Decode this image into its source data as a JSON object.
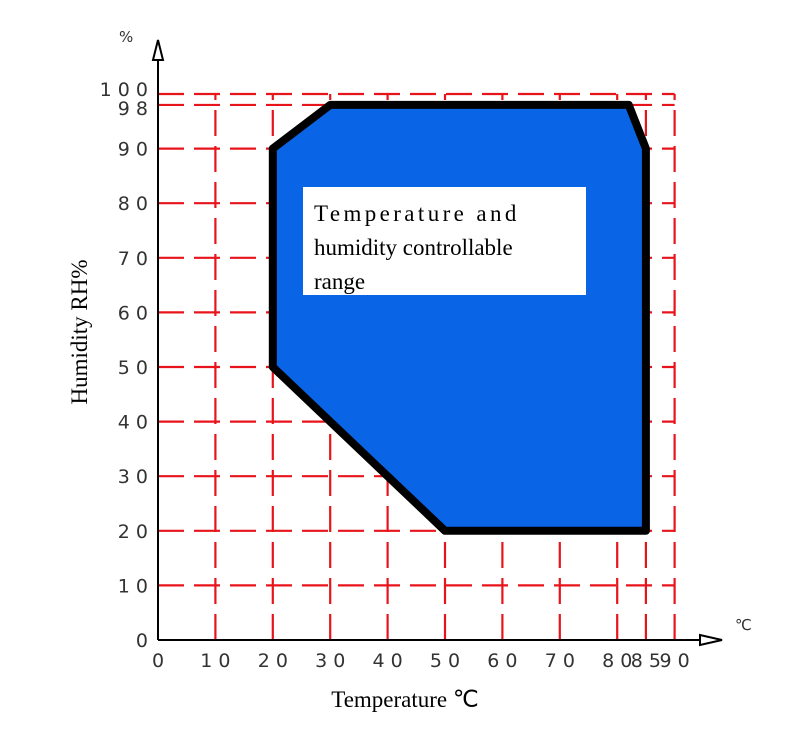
{
  "chart_data": {
    "type": "area",
    "title": "",
    "xlabel": "Temperature ℃",
    "ylabel": "Humidity RH%",
    "x_unit": "℃",
    "y_unit": "%",
    "xlim": [
      0,
      90
    ],
    "ylim": [
      0,
      100
    ],
    "x_ticks": [
      {
        "value": 0,
        "label": "0"
      },
      {
        "value": 10,
        "label": "1 0"
      },
      {
        "value": 20,
        "label": "2 0"
      },
      {
        "value": 30,
        "label": "3 0"
      },
      {
        "value": 40,
        "label": "4 0"
      },
      {
        "value": 50,
        "label": "5 0"
      },
      {
        "value": 60,
        "label": "6 0"
      },
      {
        "value": 70,
        "label": "7 0"
      },
      {
        "value": 80,
        "label": "8 0"
      },
      {
        "value": 85,
        "label": "8 5"
      },
      {
        "value": 90,
        "label": "9 0"
      }
    ],
    "y_ticks": [
      {
        "value": 0,
        "label": "0"
      },
      {
        "value": 10,
        "label": "1 0"
      },
      {
        "value": 20,
        "label": "2 0"
      },
      {
        "value": 30,
        "label": "3 0"
      },
      {
        "value": 40,
        "label": "4 0"
      },
      {
        "value": 50,
        "label": "5 0"
      },
      {
        "value": 60,
        "label": "6 0"
      },
      {
        "value": 70,
        "label": "7 0"
      },
      {
        "value": 80,
        "label": "8 0"
      },
      {
        "value": 90,
        "label": "9 0"
      },
      {
        "value": 98,
        "label": "9 8"
      },
      {
        "value": 100,
        "label": "1 0 0"
      }
    ],
    "grid": true,
    "grid_style": "dashed",
    "grid_color": "#e8141c",
    "region": {
      "label_line1": "Temperature and",
      "label_line2": "humidity controllable",
      "label_line3": "range",
      "fill_color": "#0a64e6",
      "border_color": "#000000",
      "points": [
        [
          20,
          90
        ],
        [
          30,
          98
        ],
        [
          82,
          98
        ],
        [
          85,
          90
        ],
        [
          85,
          20
        ],
        [
          50,
          20
        ],
        [
          20,
          50
        ]
      ]
    }
  }
}
